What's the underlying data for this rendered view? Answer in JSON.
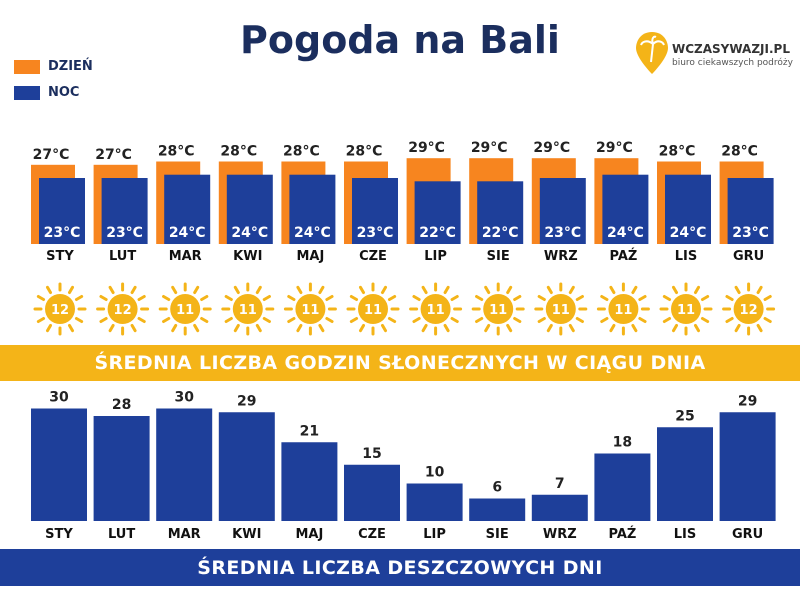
{
  "title": "Pogoda na Bali",
  "legend": {
    "day": "DZIEŃ",
    "night": "NOC"
  },
  "logo": {
    "name": "WCZASYWAZJI.PL",
    "tagline": "biuro ciekawszych podróży"
  },
  "colors": {
    "day": "#f7851f",
    "night": "#1e3f9a",
    "sun": "#f4b418",
    "text": "#1b2e5e"
  },
  "months": [
    "STY",
    "LUT",
    "MAR",
    "KWI",
    "MAJ",
    "CZE",
    "LIP",
    "SIE",
    "WRZ",
    "PAŹ",
    "LIS",
    "GRU"
  ],
  "sunshine_title": "ŚREDNIA LICZBA GODZIN SŁONECZNYCH W CIĄGU DNIA",
  "rain_title": "ŚREDNIA LICZBA DESZCZOWYCH DNI",
  "chart_data": [
    {
      "type": "bar",
      "categories": [
        "STY",
        "LUT",
        "MAR",
        "KWI",
        "MAJ",
        "CZE",
        "LIP",
        "SIE",
        "WRZ",
        "PAŹ",
        "LIS",
        "GRU"
      ],
      "series": [
        {
          "name": "DZIEŃ",
          "values": [
            27,
            27,
            28,
            28,
            28,
            28,
            29,
            29,
            29,
            29,
            28,
            28
          ],
          "labels": [
            "27°C",
            "27°C",
            "28°C",
            "28°C",
            "28°C",
            "28°C",
            "29°C",
            "29°C",
            "29°C",
            "29°C",
            "28°C",
            "28°C"
          ]
        },
        {
          "name": "NOC",
          "values": [
            23,
            23,
            24,
            24,
            24,
            23,
            22,
            22,
            23,
            24,
            24,
            23
          ],
          "labels": [
            "23°C",
            "23°C",
            "24°C",
            "24°C",
            "24°C",
            "23°C",
            "22°C",
            "22°C",
            "23°C",
            "24°C",
            "24°C",
            "23°C"
          ]
        }
      ]
    },
    {
      "type": "table",
      "categories": [
        "STY",
        "LUT",
        "MAR",
        "KWI",
        "MAJ",
        "CZE",
        "LIP",
        "SIE",
        "WRZ",
        "PAŹ",
        "LIS",
        "GRU"
      ],
      "values": [
        12,
        12,
        11,
        11,
        11,
        11,
        11,
        11,
        11,
        11,
        11,
        12
      ],
      "title": "ŚREDNIA LICZBA GODZIN SŁONECZNYCH W CIĄGU DNIA"
    },
    {
      "type": "bar",
      "categories": [
        "STY",
        "LUT",
        "MAR",
        "KWI",
        "MAJ",
        "CZE",
        "LIP",
        "SIE",
        "WRZ",
        "PAŹ",
        "LIS",
        "GRU"
      ],
      "values": [
        30,
        28,
        30,
        29,
        21,
        15,
        10,
        6,
        7,
        18,
        25,
        29
      ],
      "title": "ŚREDNIA LICZBA DESZCZOWYCH DNI"
    }
  ]
}
